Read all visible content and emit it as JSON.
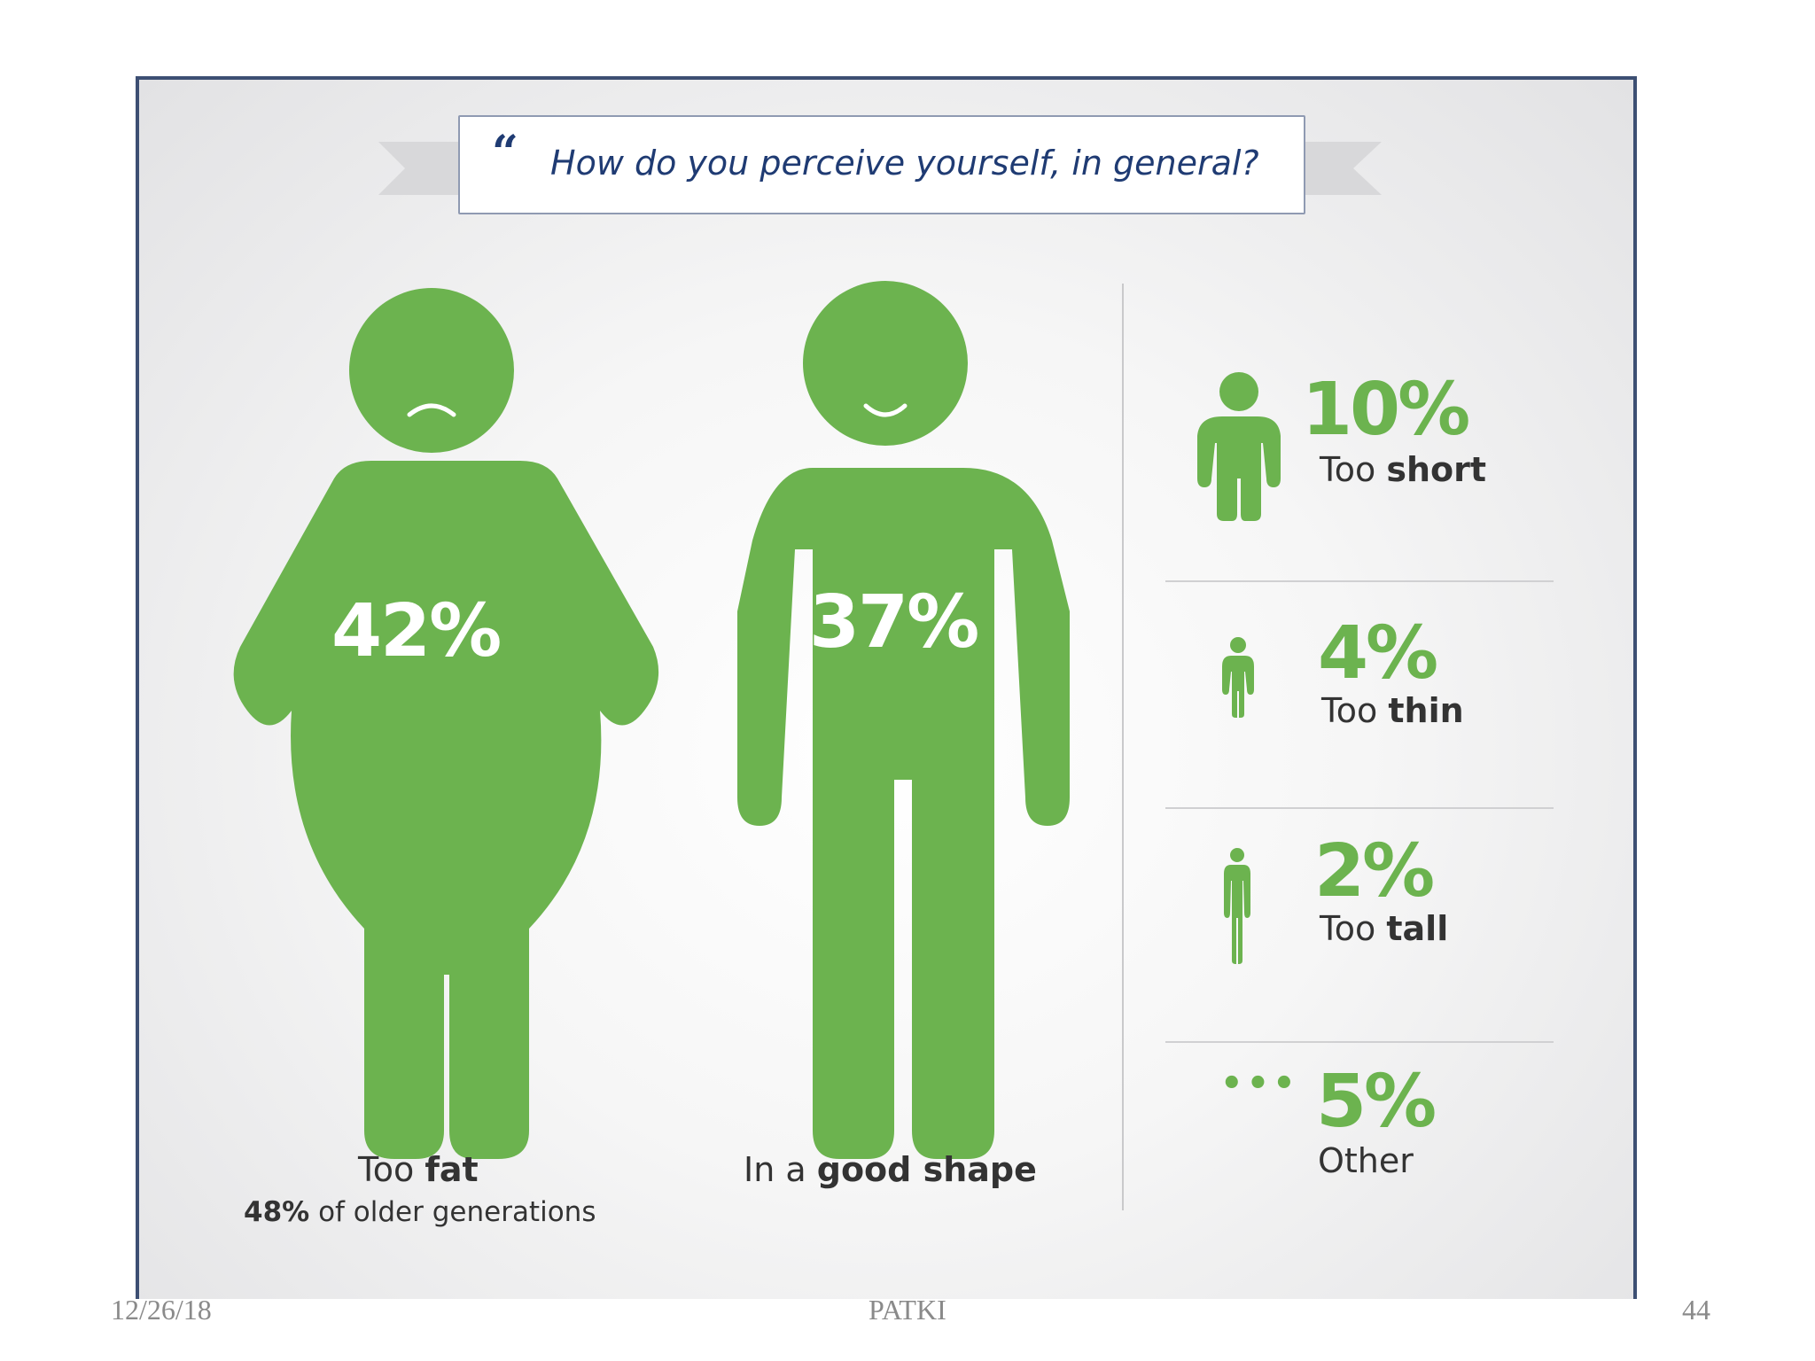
{
  "title": "How do you perceive yourself, in general?",
  "colors": {
    "figure_green": "#6cb34f",
    "title_navy": "#1f3b73",
    "frame": "#3d4f73"
  },
  "icons": [
    "quote-icon",
    "fat-person-icon",
    "fit-person-icon",
    "short-person-icon",
    "thin-person-icon",
    "tall-person-icon",
    "ellipsis-icon"
  ],
  "chart_data": {
    "type": "pictograph",
    "categories": [
      "Too fat",
      "In a good shape",
      "Too short",
      "Too thin",
      "Too tall",
      "Other"
    ],
    "values": [
      42,
      37,
      10,
      4,
      2,
      5
    ],
    "unit": "%",
    "annotations": [
      "48% of older generations"
    ]
  },
  "main": {
    "fat": {
      "pct": "42%",
      "label_pre": "Too",
      "label_bold": "fat",
      "sub_bold": "48%",
      "sub_rest": "of older generations"
    },
    "fit": {
      "pct": "37%",
      "label_pre": "In a",
      "label_bold": "good shape"
    }
  },
  "side": [
    {
      "pct": "10%",
      "label_pre": "Too",
      "label_bold": "short"
    },
    {
      "pct": "4%",
      "label_pre": "Too",
      "label_bold": "thin"
    },
    {
      "pct": "2%",
      "label_pre": "Too",
      "label_bold": "tall"
    },
    {
      "pct": "5%",
      "label_pre": "",
      "label_bold": "",
      "label_plain": "Other"
    }
  ],
  "footer": {
    "date": "12/26/18",
    "author": "PATKI",
    "page": "44"
  }
}
